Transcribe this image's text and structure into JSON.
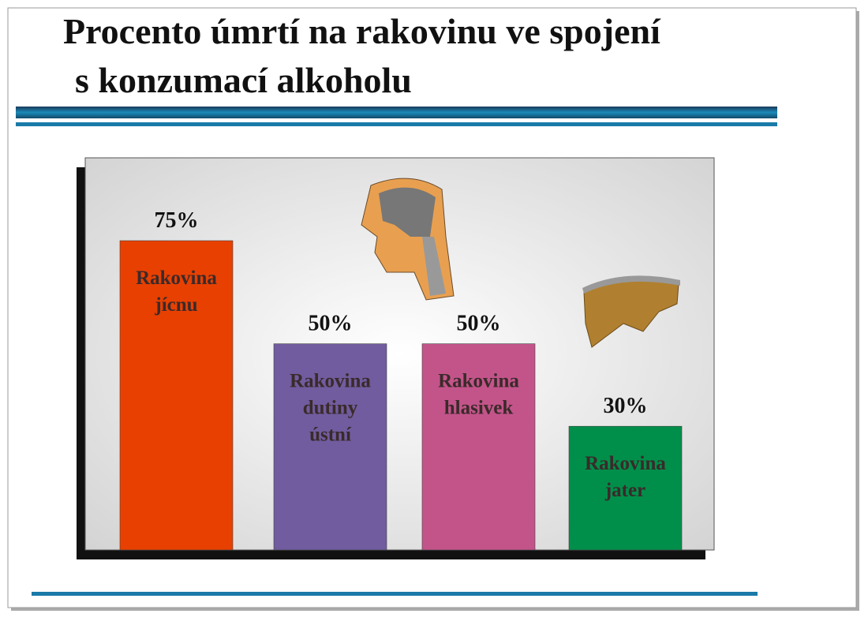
{
  "chart_data": {
    "type": "bar",
    "title": [
      "Procento úmrtí na rakovinu ve spojení",
      "s konzumací alkoholu"
    ],
    "categories": [
      [
        "Rakovina",
        "jícnu"
      ],
      [
        "Rakovina",
        "dutiny",
        "ústní"
      ],
      [
        "Rakovina",
        "hlasivek"
      ],
      [
        "Rakovina",
        "jater"
      ]
    ],
    "values": [
      75,
      50,
      50,
      30
    ],
    "value_labels": [
      "75%",
      "50%",
      "50%",
      "30%"
    ],
    "colors": [
      "#e84000",
      "#705c9e",
      "#c3548a",
      "#008f4a"
    ]
  }
}
